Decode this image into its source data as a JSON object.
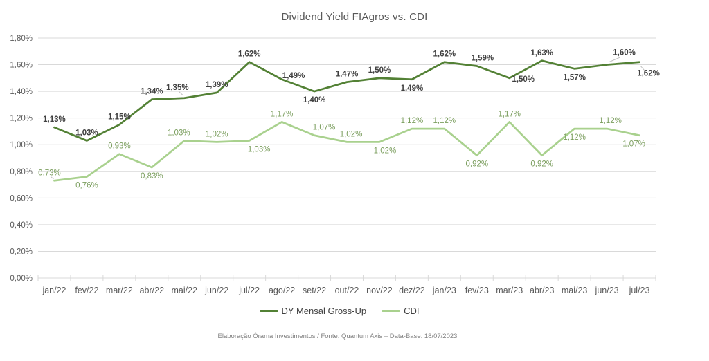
{
  "footer": "Elaboração Órama Investimentos / Fonte: Quantum Axis – Data-Base: 18/07/2023",
  "colors": {
    "background": "#FFFFFF",
    "grid": "#D9D9D9",
    "axis_text": "#595959",
    "title_text": "#595959",
    "legend_text": "#404040",
    "footer_text": "#808080",
    "leader_line": "#BFBFBF"
  },
  "chart_data": {
    "type": "line",
    "title": "Dividend Yield FIAgros vs. CDI",
    "xlabel": "",
    "ylabel": "",
    "grid": "horizontal",
    "legend_position": "bottom",
    "number_format": "0,00%",
    "ylim": [
      0,
      1.8
    ],
    "y_ticks": [
      "0,00%",
      "0,20%",
      "0,40%",
      "0,60%",
      "0,80%",
      "1,00%",
      "1,20%",
      "1,40%",
      "1,60%",
      "1,80%"
    ],
    "categories": [
      "jan/22",
      "fev/22",
      "mar/22",
      "abr/22",
      "mai/22",
      "jun/22",
      "jul/22",
      "ago/22",
      "set/22",
      "out/22",
      "nov/22",
      "dez/22",
      "jan/23",
      "fev/23",
      "mar/23",
      "abr/23",
      "mai/23",
      "jun/23",
      "jul/23"
    ],
    "series": [
      {
        "name": "DY Mensal Gross-Up",
        "color": "#538135",
        "label_color": "#404040",
        "label_bold": true,
        "values": [
          1.13,
          1.03,
          1.15,
          1.34,
          1.35,
          1.39,
          1.62,
          1.49,
          1.4,
          1.47,
          1.5,
          1.49,
          1.62,
          1.59,
          1.5,
          1.63,
          1.57,
          1.6,
          1.62
        ],
        "label_pos": [
          "a",
          "a",
          "a",
          "a",
          {
            "p": "a",
            "dx": -10,
            "dy": -12,
            "leader": true
          },
          "a",
          "a",
          {
            "p": "a",
            "dx": 17,
            "dy": -2
          },
          "b",
          "a",
          "a",
          "b",
          "a",
          {
            "p": "a",
            "dx": 8
          },
          {
            "p": "b",
            "dx": 20,
            "dy": 5
          },
          "a",
          "b",
          {
            "p": "a",
            "dx": 25,
            "dy": -14,
            "leader": true
          },
          {
            "p": "b",
            "dx": 13,
            "dy": 20,
            "leader": true
          }
        ]
      },
      {
        "name": "CDI",
        "color": "#A9D18E",
        "label_color": "#7B9E5E",
        "label_bold": false,
        "values": [
          0.73,
          0.76,
          0.93,
          0.83,
          1.03,
          1.02,
          1.03,
          1.17,
          1.07,
          1.02,
          1.02,
          1.12,
          1.12,
          0.92,
          1.17,
          0.92,
          1.12,
          1.12,
          1.07
        ],
        "label_pos": [
          {
            "p": "a",
            "dx": -7,
            "leader": true
          },
          "b",
          "a",
          "b",
          {
            "p": "a",
            "dx": -8
          },
          "a",
          {
            "p": "b",
            "dx": 14
          },
          "a",
          {
            "p": "a",
            "dx": 14
          },
          {
            "p": "a",
            "dx": 6
          },
          {
            "p": "b",
            "dx": 8
          },
          "a",
          "a",
          "b",
          "a",
          "b",
          "b",
          {
            "p": "a",
            "dx": 5
          },
          {
            "p": "b",
            "dx": -8
          }
        ]
      }
    ]
  }
}
